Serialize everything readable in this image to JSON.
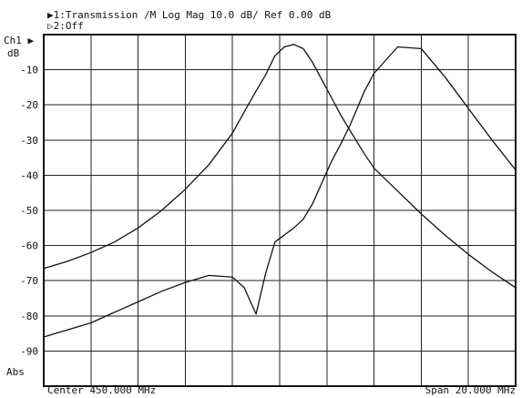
{
  "header": {
    "line1": "▶1:Transmission /M Log Mag  10.0 dB/  Ref   0.00 dB",
    "line2": "▷2:Off"
  },
  "channel_label": "Ch1 ▶",
  "unit_label": "dB",
  "format_label": "Abs",
  "footer": {
    "center": "Center 450.000 MHz",
    "span": "Span 20.000 MHz"
  },
  "chart_data": {
    "type": "line",
    "title": "",
    "xlabel": "",
    "ylabel": "dB",
    "xlim": [
      440,
      460
    ],
    "ylim": [
      -100,
      0
    ],
    "x_divisions": 10,
    "y_ticks": [
      -10,
      -20,
      -30,
      -40,
      -50,
      -60,
      -70,
      -80,
      -90
    ],
    "y_tick_labels": [
      "-10",
      "-20",
      "-30",
      "-40",
      "-50",
      "-60",
      "-70",
      "-80",
      "-90"
    ],
    "grid": true,
    "legend": "none",
    "series": [
      {
        "x": [
          440,
          441,
          442,
          443,
          444,
          445,
          446,
          447,
          448,
          448.5,
          449,
          449.4,
          449.8,
          450.2,
          450.6,
          451,
          451.4,
          451.8,
          452.2,
          452.6,
          453,
          453.6,
          454,
          455,
          456,
          457,
          458,
          459,
          460
        ],
        "y": [
          -66.5,
          -64.5,
          -62,
          -59,
          -55,
          -50,
          -44,
          -37,
          -28,
          -22,
          -16,
          -11.5,
          -6,
          -3.5,
          -2.8,
          -4,
          -8,
          -13,
          -18,
          -23,
          -27.5,
          -34,
          -38,
          -44.5,
          -51,
          -57,
          -62.5,
          -67.5,
          -72
        ]
      },
      {
        "x": [
          440,
          441,
          442,
          443,
          444,
          445,
          446,
          447,
          448,
          448.5,
          449,
          449.4,
          449.8,
          450.2,
          450.6,
          451,
          451.4,
          451.8,
          452.2,
          452.6,
          453,
          453.6,
          454,
          455,
          456,
          457,
          458,
          459,
          460
        ],
        "y": [
          -86,
          -84,
          -82,
          -79,
          -76,
          -73,
          -70.5,
          -68.5,
          -69,
          -72,
          -79.5,
          -68,
          -59,
          -57,
          -55,
          -52.5,
          -48,
          -42,
          -36,
          -31,
          -25.5,
          -16,
          -11,
          -3.5,
          -4,
          -12,
          -21,
          -30,
          -38.5
        ]
      }
    ]
  }
}
